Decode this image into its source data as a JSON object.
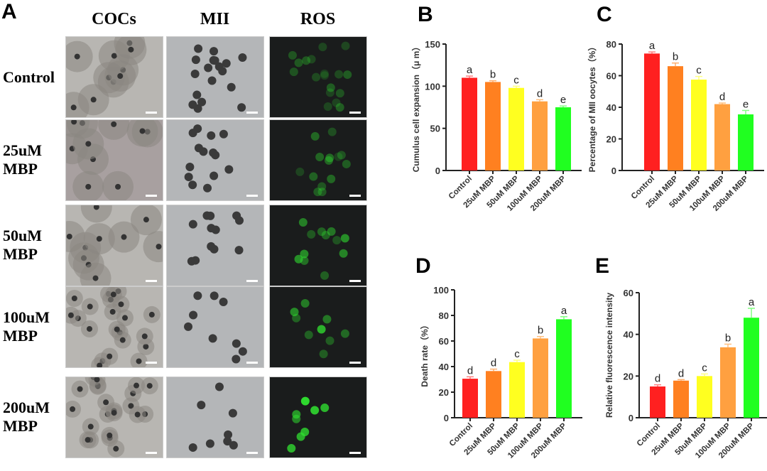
{
  "panel_a": {
    "letter": "A",
    "columns": [
      "COCs",
      "MII",
      "ROS"
    ],
    "rows": [
      {
        "line1": "Control",
        "line2": ""
      },
      {
        "line1": "25uM",
        "line2": "MBP"
      },
      {
        "line1": "50uM",
        "line2": "MBP"
      },
      {
        "line1": "100uM",
        "line2": "MBP"
      },
      {
        "line1": "200uM",
        "line2": "MBP"
      }
    ]
  },
  "chart_data": [
    {
      "panel": "B",
      "type": "bar",
      "categories": [
        "Control",
        "25uM MBP",
        "50uM MBP",
        "100uM MBP",
        "200uM MBP"
      ],
      "values": [
        110,
        105,
        98,
        82,
        75
      ],
      "errors": [
        2,
        1.5,
        2,
        2,
        1.5
      ],
      "significance": [
        "a",
        "b",
        "c",
        "d",
        "e"
      ],
      "ylabel": "Cumulus cell expansion（μ m）",
      "ylim": [
        0,
        150
      ],
      "yticks": [
        0,
        50,
        100,
        150
      ]
    },
    {
      "panel": "C",
      "type": "bar",
      "categories": [
        "Control",
        "25uM MBP",
        "50uM MBP",
        "100uM MBP",
        "200uM MBP"
      ],
      "values": [
        74,
        66,
        57.5,
        42,
        35.5
      ],
      "errors": [
        1,
        2,
        2,
        0.7,
        2.5
      ],
      "significance": [
        "a",
        "b",
        "c",
        "d",
        "e"
      ],
      "ylabel": "Percentage of MII oocytes（%）",
      "ylim": [
        0,
        80
      ],
      "yticks": [
        0,
        20,
        40,
        60,
        80
      ]
    },
    {
      "panel": "D",
      "type": "bar",
      "categories": [
        "Control",
        "25uM MBP",
        "50uM MBP",
        "100uM MBP",
        "200uM MBP"
      ],
      "values": [
        30.5,
        36.5,
        43.5,
        62,
        77
      ],
      "errors": [
        1.5,
        1.5,
        1.5,
        1.5,
        2
      ],
      "significance": [
        "d",
        "d",
        "c",
        "b",
        "a"
      ],
      "ylabel": "Death rate（%）",
      "ylim": [
        0,
        100
      ],
      "yticks": [
        0,
        20,
        40,
        60,
        80,
        100
      ]
    },
    {
      "panel": "E",
      "type": "bar",
      "categories": [
        "Control",
        "25uM MBP",
        "50uM MBP",
        "100uM MBP",
        "200uM MBP"
      ],
      "values": [
        15,
        17.8,
        20,
        33.8,
        48
      ],
      "errors": [
        0.8,
        0.5,
        1,
        1.5,
        4.5
      ],
      "significance": [
        "d",
        "d",
        "c",
        "b",
        "a"
      ],
      "ylabel": "Relative fluorescence intensity",
      "ylim": [
        0,
        60
      ],
      "yticks": [
        0,
        20,
        40,
        60
      ]
    }
  ],
  "colors": {
    "bars": [
      "#ff2020",
      "#ff8020",
      "#ffff20",
      "#ffa040",
      "#20ff20"
    ],
    "error_bars": [
      "#ff8080",
      "#ffb070",
      "#ffff80",
      "#ffc080",
      "#80ff80"
    ]
  }
}
